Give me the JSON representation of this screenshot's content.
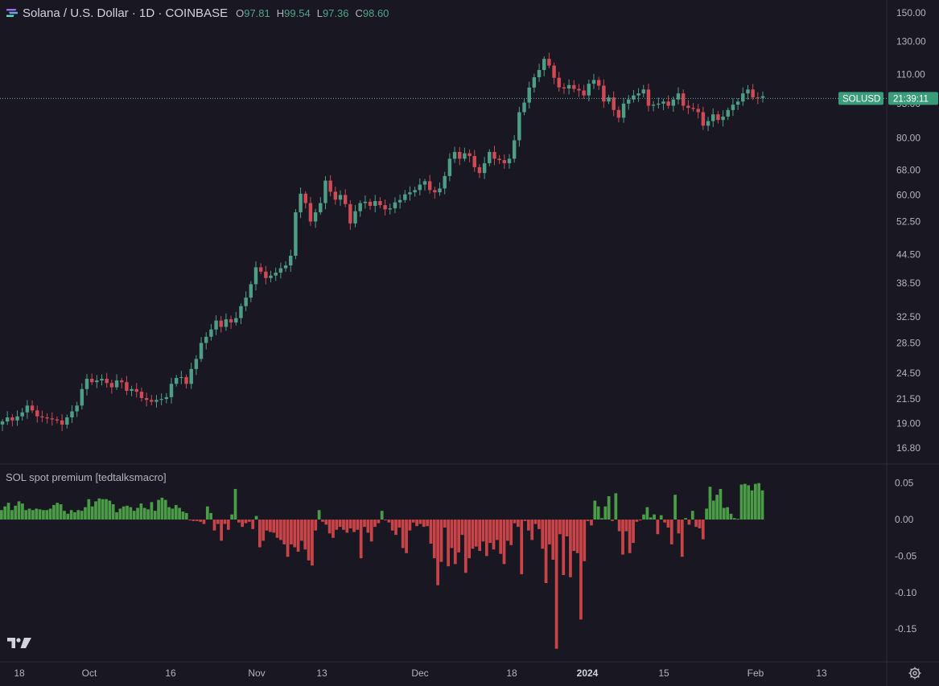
{
  "header": {
    "symbol_title": "Solana / U.S. Dollar · 1D · COINBASE",
    "ohlc": [
      {
        "key": "O",
        "value": "97.81"
      },
      {
        "key": "H",
        "value": "99.54"
      },
      {
        "key": "L",
        "value": "97.36"
      },
      {
        "key": "C",
        "value": "98.60"
      }
    ]
  },
  "price_label": {
    "ticker": "SOLUSD",
    "countdown": "21:39:11",
    "price_behind": "95.00"
  },
  "indicator": {
    "title": "SOL spot premium [tedtalksmacro]"
  },
  "colors": {
    "background": "#181722",
    "up": "#4e9e86",
    "down": "#cf4a55",
    "hist_pos": "#4a9c46",
    "hist_neg": "#c94448",
    "text": "#b2b5be",
    "badge": "#3b9c7c"
  },
  "chart_data": [
    {
      "type": "candlestick",
      "scale": "log",
      "ylim": [
        15.5,
        160
      ],
      "yticks": [
        "150.00",
        "130.00",
        "110.00",
        "95.00",
        "80.00",
        "68.00",
        "60.00",
        "52.50",
        "44.50",
        "38.50",
        "32.50",
        "28.50",
        "24.50",
        "21.50",
        "19.00",
        "16.80"
      ],
      "xticks": [
        "18",
        "Oct",
        "16",
        "Nov",
        "13",
        "Dec",
        "18",
        "2024",
        "15",
        "Feb",
        "13"
      ],
      "last_price": 98.6,
      "price_line": 97.5,
      "closes": [
        19.2,
        19.6,
        19.3,
        19.7,
        20.1,
        20.8,
        20.3,
        19.7,
        19.6,
        19.5,
        19.4,
        19.3,
        18.9,
        19.6,
        20.2,
        20.8,
        22.6,
        23.8,
        23.4,
        23.6,
        23.8,
        23.3,
        22.8,
        23.6,
        23.4,
        22.4,
        22.6,
        22.3,
        21.6,
        21.4,
        21.2,
        21.4,
        21.5,
        21.7,
        23.2,
        23.9,
        24.0,
        23.2,
        25.0,
        26.3,
        28.5,
        29.4,
        30.5,
        31.9,
        30.9,
        32.1,
        31.6,
        32.3,
        34.3,
        35.8,
        38.3,
        41.7,
        40.8,
        39.5,
        40.0,
        40.6,
        41.5,
        42.1,
        44.2,
        55.0,
        60.4,
        57.6,
        52.5,
        55.0,
        57.6,
        64.5,
        61.0,
        58.6,
        60.0,
        57.3,
        52.0,
        55.3,
        57.6,
        58.0,
        56.8,
        58.2,
        57.0,
        55.8,
        56.1,
        57.8,
        58.5,
        60.2,
        60.8,
        61.5,
        63.2,
        64.3,
        61.5,
        60.8,
        62.0,
        66.0,
        72.0,
        74.5,
        72.0,
        74.0,
        73.0,
        69.0,
        67.0,
        70.4,
        74.5,
        72.0,
        71.5,
        70.4,
        72.0,
        79.0,
        91.0,
        95.5,
        103.0,
        108.5,
        112.5,
        119.0,
        115.0,
        108.2,
        103.1,
        102.5,
        104.3,
        102.3,
        101.5,
        99.0,
        105.0,
        107.0,
        104.0,
        96.0,
        98.0,
        92.0,
        88.5,
        95.0,
        97.0,
        99.0,
        100.0,
        102.0,
        94.0,
        94.5,
        95.0,
        96.0,
        94.0,
        97.0,
        100.0,
        94.0,
        93.0,
        92.5,
        91.0,
        85.0,
        87.0,
        90.0,
        87.5,
        89.0,
        92.0,
        94.5,
        96.0,
        100.0,
        102.0,
        98.0,
        97.8,
        98.6
      ]
    },
    {
      "type": "bar",
      "name": "SOL spot premium",
      "ylim": [
        -0.195,
        0.075
      ],
      "yticks": [
        "0.05",
        "0.00",
        "-0.05",
        "-0.10",
        "-0.15"
      ],
      "values": [
        0.013,
        0.018,
        0.023,
        0.013,
        0.019,
        0.025,
        0.022,
        0.013,
        0.015,
        0.013,
        0.015,
        0.014,
        0.013,
        0.013,
        0.015,
        0.02,
        0.023,
        0.021,
        0.012,
        0.008,
        0.013,
        0.01,
        0.013,
        0.012,
        0.017,
        0.028,
        0.018,
        0.025,
        0.029,
        0.028,
        0.028,
        0.026,
        0.021,
        0.01,
        0.015,
        0.018,
        0.019,
        0.017,
        0.012,
        0.016,
        0.022,
        0.016,
        0.014,
        0.024,
        0.012,
        0.027,
        0.03,
        0.027,
        0.017,
        0.015,
        0.02,
        0.016,
        0.011,
        0.009,
        -0.001,
        -0.002,
        -0.002,
        -0.003,
        -0.006,
        0.018,
        0.009,
        -0.015,
        -0.006,
        -0.029,
        -0.006,
        -0.014,
        0.007,
        0.042,
        -0.004,
        -0.01,
        -0.005,
        -0.003,
        -0.013,
        0.005,
        -0.038,
        -0.029,
        -0.015,
        -0.017,
        -0.018,
        -0.025,
        -0.028,
        -0.034,
        -0.051,
        -0.034,
        -0.038,
        -0.044,
        -0.029,
        -0.041,
        -0.056,
        -0.063,
        -0.015,
        0.013,
        -0.003,
        -0.007,
        -0.019,
        -0.025,
        -0.014,
        -0.01,
        -0.014,
        -0.018,
        -0.012,
        -0.017,
        -0.014,
        -0.053,
        -0.01,
        -0.018,
        -0.03,
        -0.01,
        -0.005,
        0.012,
        -0.001,
        -0.004,
        -0.015,
        -0.021,
        -0.011,
        -0.039,
        -0.046,
        -0.015,
        -0.004,
        -0.009,
        -0.006,
        -0.01,
        -0.009,
        -0.033,
        -0.053,
        -0.09,
        -0.058,
        -0.011,
        -0.064,
        -0.039,
        -0.061,
        -0.045,
        -0.021,
        -0.073,
        -0.053,
        -0.04,
        -0.037,
        -0.043,
        -0.03,
        -0.05,
        -0.032,
        -0.041,
        -0.028,
        -0.047,
        -0.061,
        -0.029,
        -0.035,
        -0.005,
        -0.01,
        -0.075,
        -0.002,
        -0.015,
        -0.028,
        -0.006,
        -0.013,
        -0.04,
        -0.087,
        -0.034,
        -0.055,
        -0.177,
        -0.02,
        -0.076,
        -0.023,
        -0.079,
        -0.043,
        -0.046,
        -0.137,
        -0.057,
        -0.002,
        -0.008,
        0.026,
        0.018,
        0.002,
        0.018,
        0.032,
        -0.002,
        0.036,
        -0.016,
        -0.048,
        -0.016,
        -0.046,
        -0.032,
        -0.003,
        -0.001,
        0.007,
        0.017,
        0.003,
        0.007,
        -0.02,
        0.006,
        -0.004,
        -0.011,
        -0.034,
        0.034,
        -0.019,
        -0.051,
        0.002,
        -0.007,
        0.012,
        -0.01,
        -0.012,
        -0.027,
        0.015,
        0.045,
        0.026,
        0.034,
        0.042,
        0.016,
        0.017,
        0.008,
        0.002,
        0.001,
        0.048,
        0.049,
        0.047,
        0.04,
        0.049,
        0.05,
        0.04
      ]
    }
  ]
}
